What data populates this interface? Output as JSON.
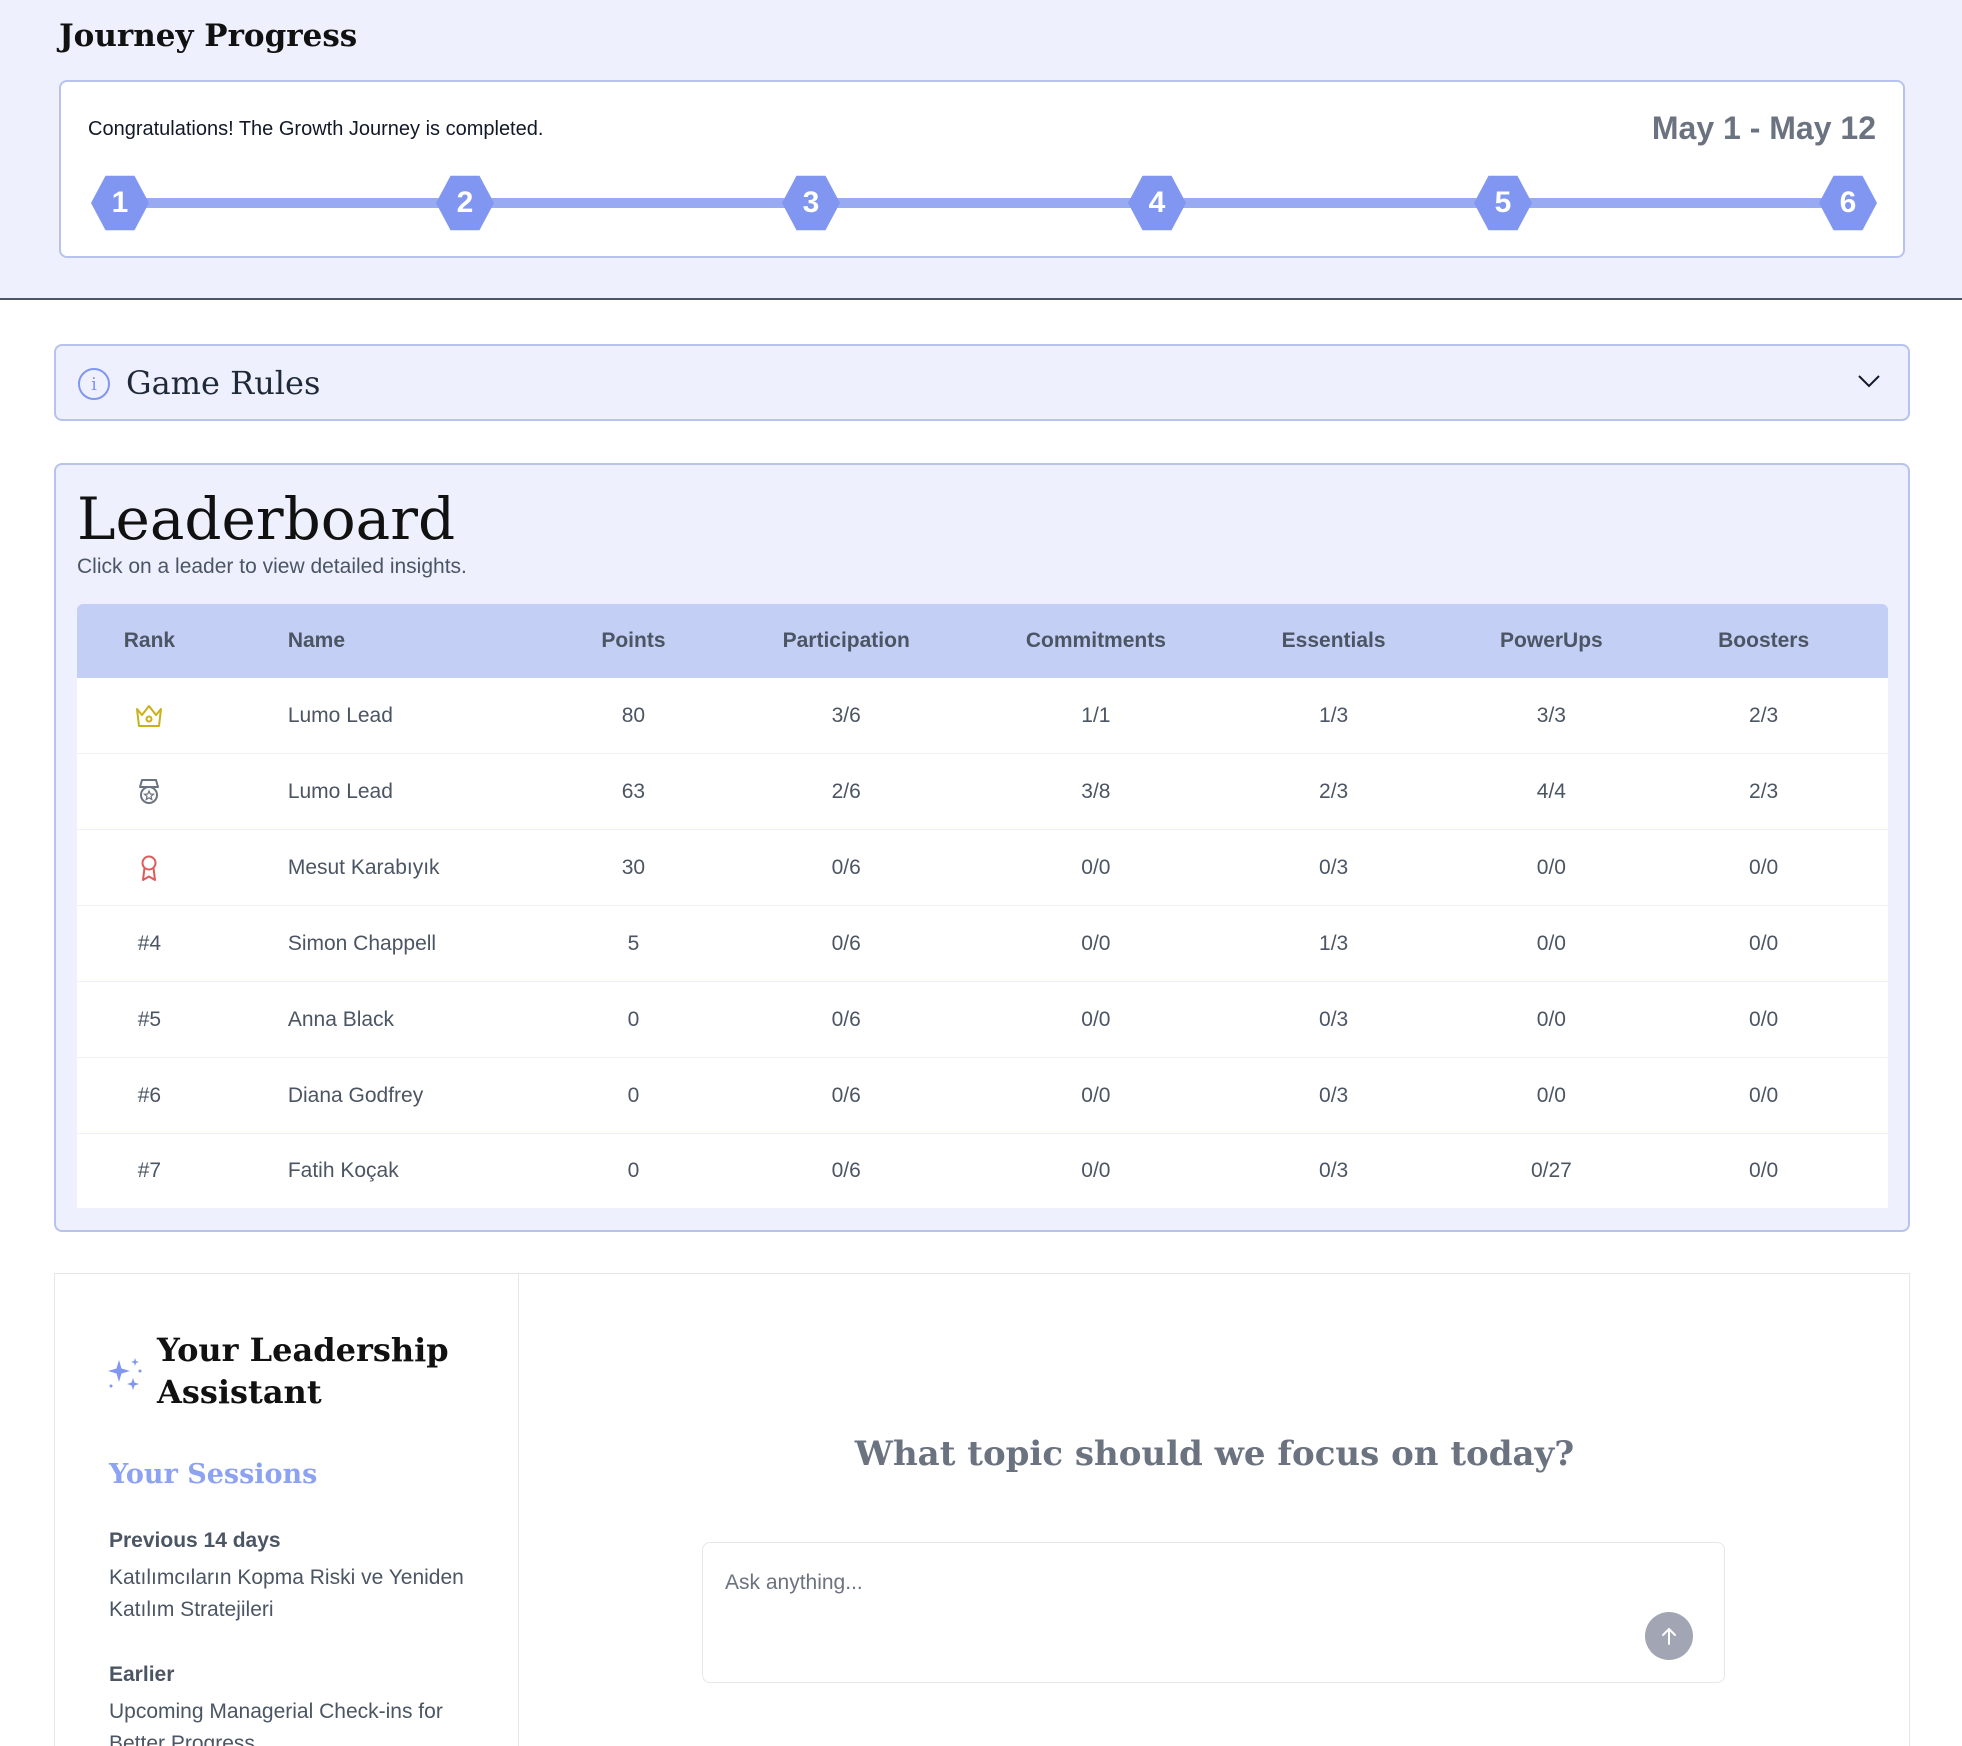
{
  "journey": {
    "title": "Journey Progress",
    "message": "Congratulations! The Growth Journey is completed.",
    "dates": "May 1 - May 12",
    "steps": [
      "1",
      "2",
      "3",
      "4",
      "5",
      "6"
    ]
  },
  "rules": {
    "title": "Game Rules",
    "info_icon": "info-icon",
    "chevron_icon": "chevron-down-icon"
  },
  "leaderboard": {
    "title": "Leaderboard",
    "subtitle": "Click on a leader to view detailed insights.",
    "columns": [
      "Rank",
      "Name",
      "Points",
      "Participation",
      "Commitments",
      "Essentials",
      "PowerUps",
      "Boosters"
    ],
    "rows": [
      {
        "rank": "",
        "rank_icon": "crown-icon",
        "name": "Lumo Lead",
        "points": "80",
        "participation": "3/6",
        "commitments": "1/1",
        "essentials": "1/3",
        "powerups": "3/3",
        "boosters": "2/3"
      },
      {
        "rank": "",
        "rank_icon": "silver-medal-icon",
        "name": "Lumo Lead",
        "points": "63",
        "participation": "2/6",
        "commitments": "3/8",
        "essentials": "2/3",
        "powerups": "4/4",
        "boosters": "2/3"
      },
      {
        "rank": "",
        "rank_icon": "bronze-award-icon",
        "name": "Mesut Karabıyık",
        "points": "30",
        "participation": "0/6",
        "commitments": "0/0",
        "essentials": "0/3",
        "powerups": "0/0",
        "boosters": "0/0"
      },
      {
        "rank": "#4",
        "rank_icon": "",
        "name": "Simon Chappell",
        "points": "5",
        "participation": "0/6",
        "commitments": "0/0",
        "essentials": "1/3",
        "powerups": "0/0",
        "boosters": "0/0"
      },
      {
        "rank": "#5",
        "rank_icon": "",
        "name": "Anna Black",
        "points": "0",
        "participation": "0/6",
        "commitments": "0/0",
        "essentials": "0/3",
        "powerups": "0/0",
        "boosters": "0/0"
      },
      {
        "rank": "#6",
        "rank_icon": "",
        "name": "Diana Godfrey",
        "points": "0",
        "participation": "0/6",
        "commitments": "0/0",
        "essentials": "0/3",
        "powerups": "0/0",
        "boosters": "0/0"
      },
      {
        "rank": "#7",
        "rank_icon": "",
        "name": "Fatih Koçak",
        "points": "0",
        "participation": "0/6",
        "commitments": "0/0",
        "essentials": "0/3",
        "powerups": "0/27",
        "boosters": "0/0"
      }
    ]
  },
  "assistant": {
    "title": "Your Leadership Assistant",
    "sessions_title": "Your Sessions",
    "groups": [
      {
        "label": "Previous 14 days",
        "items": [
          "Katılımcıların Kopma Riski ve Yeniden Katılım Stratejileri"
        ]
      },
      {
        "label": "Earlier",
        "items": [
          "Upcoming Managerial Check-ins for Better Progress"
        ]
      }
    ],
    "question": "What topic should we focus on today?",
    "input_placeholder": "Ask anything...",
    "input_value": "",
    "send_icon": "arrow-up-icon"
  },
  "colors": {
    "accent": "#8096f0",
    "page_bg": "#eef1fd",
    "header_row": "#c4cff6",
    "crown": "#c9b11a",
    "medal": "#6b7280",
    "award": "#e05a5a"
  }
}
